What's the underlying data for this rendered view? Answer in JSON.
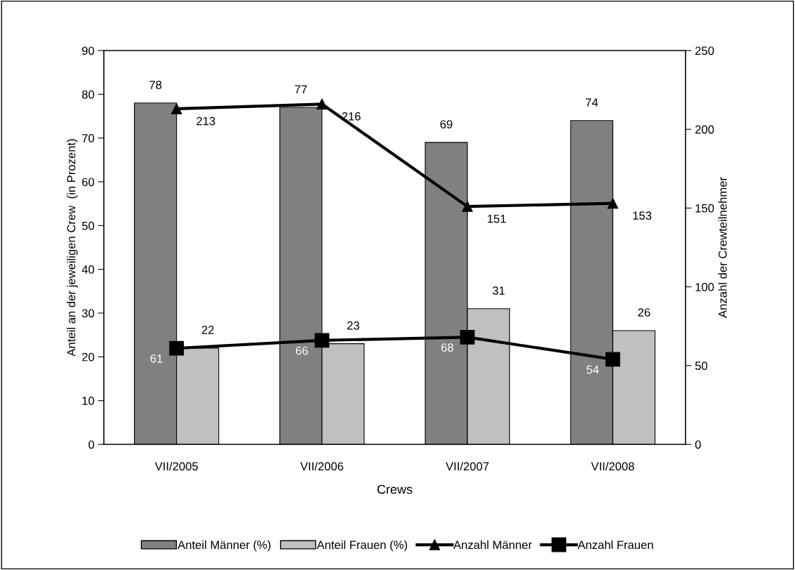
{
  "chart_data": {
    "type": "bar",
    "xlabel": "Crews",
    "ylabel": "Anteil an der jeweiligen Crew  (in Prozent)",
    "y2label": "Anzahl der Crewteilnehmer",
    "categories": [
      "VII/2005",
      "VII/2006",
      "VII/2007",
      "VII/2008"
    ],
    "series": [
      {
        "name": "Anteil Männer (%)",
        "color": "#808080",
        "values": [
          78,
          77,
          69,
          74
        ]
      },
      {
        "name": "Anteil Frauen (%)",
        "color": "#c0c0c0",
        "values": [
          22,
          23,
          31,
          26
        ]
      },
      {
        "name": "Anzahl Männer",
        "type": "line",
        "axis": "y2",
        "marker": "triangle",
        "color": "#000000",
        "values": [
          213,
          216,
          151,
          153
        ]
      },
      {
        "name": "Anzahl Frauen",
        "type": "line",
        "axis": "y2",
        "marker": "square",
        "color": "#000000",
        "values": [
          61,
          66,
          68,
          54
        ]
      }
    ],
    "ylim": [
      0,
      90
    ],
    "yticks": [
      0,
      10,
      20,
      30,
      40,
      50,
      60,
      70,
      80,
      90
    ],
    "y2lim": [
      0,
      250
    ],
    "y2ticks": [
      0,
      50,
      100,
      150,
      200,
      250
    ],
    "data_labels": true,
    "grid": false,
    "legend": "bottom"
  }
}
